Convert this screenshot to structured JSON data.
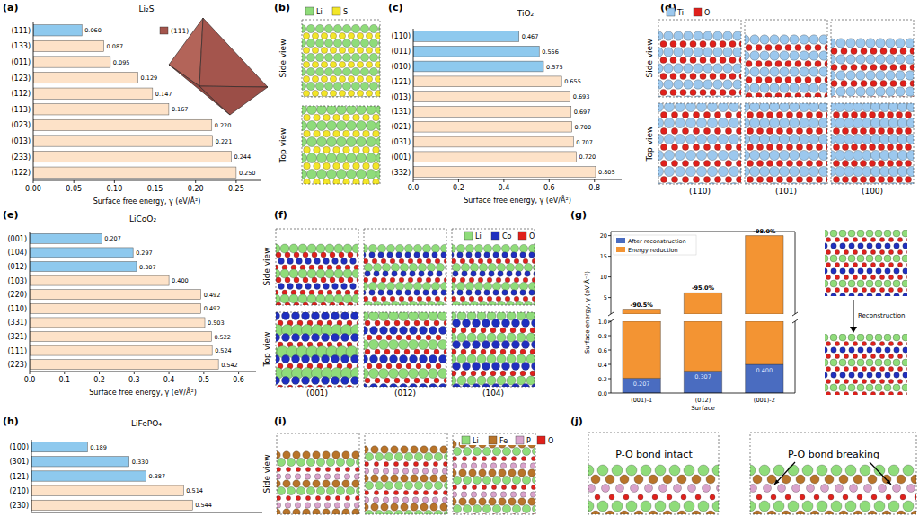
{
  "chart_data": [
    {
      "panel": "(a)",
      "type": "bar",
      "orientation": "horizontal",
      "title": "Li₂S",
      "inset_legend": "(111)",
      "categories": [
        "(111)",
        "(133)",
        "(011)",
        "(123)",
        "(112)",
        "(113)",
        "(023)",
        "(013)",
        "(233)",
        "(122)"
      ],
      "values": [
        0.06,
        0.087,
        0.095,
        0.129,
        0.147,
        0.167,
        0.22,
        0.221,
        0.244,
        0.25
      ],
      "value_labels": [
        "0.060",
        "0.087",
        "0.095",
        "0.129",
        "0.147",
        "0.167",
        "0.220",
        "0.221",
        "0.244",
        "0.250"
      ],
      "colors": [
        "#8ec9ee",
        "#fde2c8",
        "#fde2c8",
        "#fde2c8",
        "#fde2c8",
        "#fde2c8",
        "#fde2c8",
        "#fde2c8",
        "#fde2c8",
        "#fde2c8"
      ],
      "data_labels": true,
      "x_label": "Surface free energy, γ (eV/Å²)",
      "xlim": [
        0,
        0.28
      ],
      "xticks": [
        {
          "value": 0,
          "label": "0.00"
        },
        0.05,
        {
          "value": 0.1,
          "label": "0.10"
        },
        0.15,
        {
          "value": 0.2,
          "label": "0.20"
        },
        0.25
      ]
    },
    {
      "panel": "(c)",
      "type": "bar",
      "orientation": "horizontal",
      "title": "TiO₂",
      "categories": [
        "(110)",
        "(011)",
        "(010)",
        "(121)",
        "(013)",
        "(131)",
        "(021)",
        "(031)",
        "(001)",
        "(332)"
      ],
      "values": [
        0.467,
        0.556,
        0.575,
        0.655,
        0.693,
        0.697,
        0.7,
        0.707,
        0.72,
        0.805
      ],
      "value_labels": [
        "0.467",
        "0.556",
        "0.575",
        "0.655",
        "0.693",
        "0.697",
        "0.700",
        "0.707",
        "0.720",
        "0.805"
      ],
      "colors": [
        "#8ec9ee",
        "#8ec9ee",
        "#8ec9ee",
        "#fde2c8",
        "#fde2c8",
        "#fde2c8",
        "#fde2c8",
        "#fde2c8",
        "#fde2c8",
        "#fde2c8"
      ],
      "data_labels": true,
      "x_label": "Surface free energy, γ (eV/Å²)",
      "xlim": [
        0,
        0.92
      ],
      "xticks": [
        {
          "value": 0,
          "label": "0.0"
        },
        0.2,
        0.4,
        0.6,
        0.8
      ]
    },
    {
      "panel": "(e)",
      "type": "bar",
      "orientation": "horizontal",
      "title": "LiCoO₂",
      "categories": [
        "(001)",
        "(104)",
        "(012)",
        "(103)",
        "(220)",
        "(110)",
        "(331)",
        "(321)",
        "(111)",
        "(223)"
      ],
      "values": [
        0.207,
        0.297,
        0.307,
        0.4,
        0.492,
        0.492,
        0.503,
        0.522,
        0.524,
        0.542
      ],
      "value_labels": [
        "0.207",
        "0.297",
        "0.307",
        "0.400",
        "0.492",
        "0.492",
        "0.503",
        "0.522",
        "0.524",
        "0.542"
      ],
      "colors": [
        "#8ec9ee",
        "#8ec9ee",
        "#8ec9ee",
        "#fde2c8",
        "#fde2c8",
        "#fde2c8",
        "#fde2c8",
        "#fde2c8",
        "#fde2c8",
        "#fde2c8"
      ],
      "data_labels": true,
      "x_label": "Surface free energy, γ (eV/Å²)",
      "xlim": [
        0,
        0.65
      ],
      "xticks": [
        {
          "value": 0,
          "label": "0.0"
        },
        0.1,
        0.2,
        0.3,
        0.4,
        0.5,
        0.6
      ]
    },
    {
      "panel": "(g)",
      "type": "bar",
      "stacked": true,
      "data_labels": true,
      "legend": "upper left",
      "categories": [
        "(001)-1",
        "(012)",
        "(001)-2"
      ],
      "series": [
        {
          "name": "After reconstruction",
          "color": "#4a6cc0",
          "values": [
            0.207,
            0.307,
            0.4
          ],
          "value_labels": [
            "0.207",
            "0.307",
            "0.400"
          ]
        },
        {
          "name": "Energy reduction",
          "color": "#f39433",
          "values": [
            1.972,
            5.833,
            19.6
          ]
        }
      ],
      "annotations": [
        "-90.5%",
        "-95.0%",
        "-98.0%"
      ],
      "x_label": "Surface",
      "y_label": "Surface energy, γ (eV Å⁻²)",
      "ylim": [
        0,
        21
      ],
      "yticks": [
        {
          "value": 0,
          "label": "0.0"
        },
        0.2,
        0.4,
        0.6,
        0.8,
        {
          "value": 1,
          "label": "1.0"
        },
        5,
        10,
        15,
        20
      ]
    },
    {
      "panel": "(h)",
      "type": "bar",
      "orientation": "horizontal",
      "title": "LiFePO₄",
      "tick_labels": "y",
      "categories": [
        "(100)",
        "(301)",
        "(121)",
        "(210)",
        "(230)"
      ],
      "values": [
        0.189,
        0.33,
        0.387,
        0.514,
        0.544
      ],
      "value_labels": [
        "0.189",
        "0.330",
        "0.387",
        "0.514",
        "0.544"
      ],
      "colors": [
        "#8ec9ee",
        "#8ec9ee",
        "#8ec9ee",
        "#fde2c8",
        "#fde2c8"
      ],
      "data_labels": true,
      "xlim": [
        0,
        0.78
      ]
    }
  ],
  "figures": {
    "b": {
      "panel": "(b)",
      "legend": [
        {
          "label": "Li",
          "color": "#8fdc7a"
        },
        {
          "label": "S",
          "color": "#f3e628"
        }
      ],
      "row_labels": [
        "Side view",
        "Top view"
      ]
    },
    "d": {
      "panel": "(d)",
      "legend": [
        {
          "label": "Ti",
          "color": "#9cc8ee"
        },
        {
          "label": "O",
          "color": "#e0201b"
        }
      ],
      "row_labels": [
        "Side view",
        "Top view"
      ],
      "column_labels": [
        "(110)",
        "(101)",
        "(100)"
      ]
    },
    "f": {
      "panel": "(f)",
      "legend": [
        {
          "label": "Li",
          "color": "#8fdc7a"
        },
        {
          "label": "Co",
          "color": "#1f2fbf"
        },
        {
          "label": "O",
          "color": "#e0201b"
        }
      ],
      "row_labels": [
        "Side view",
        "Top view"
      ],
      "column_labels": [
        "(001)",
        "(012)",
        "(104)"
      ]
    },
    "g": {
      "label": "Reconstruction"
    },
    "i": {
      "panel": "(i)",
      "legend": [
        {
          "label": "Li",
          "color": "#8fdc7a"
        },
        {
          "label": "Fe",
          "color": "#b8742a"
        },
        {
          "label": "P",
          "color": "#d9a3cc"
        },
        {
          "label": "O",
          "color": "#e0201b"
        }
      ],
      "row_labels": [
        "Side view"
      ]
    },
    "j": {
      "panel": "(j)",
      "captions": [
        "P-O bond intact",
        "P-O bond breaking"
      ]
    }
  }
}
